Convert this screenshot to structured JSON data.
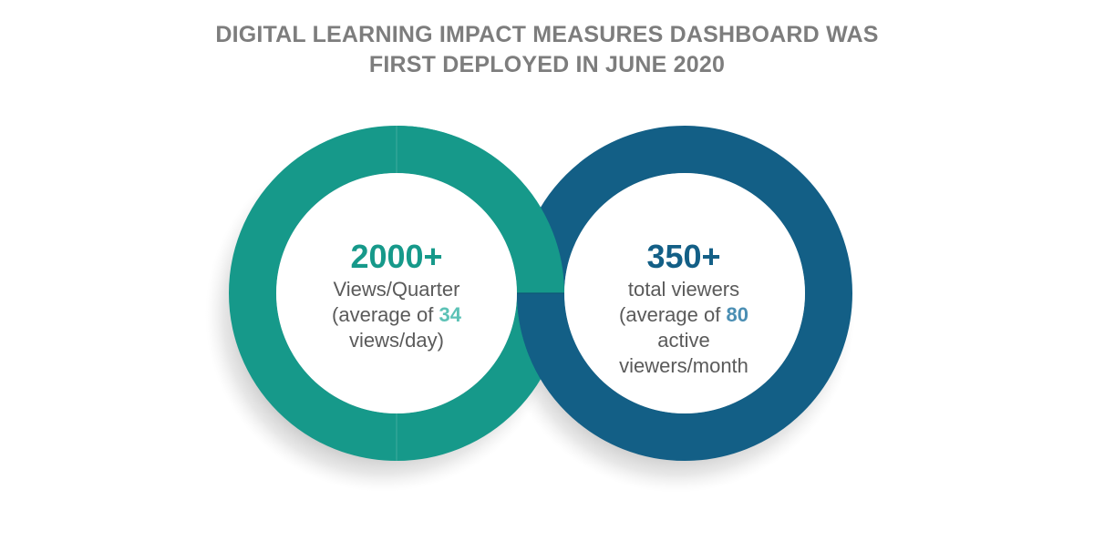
{
  "title": {
    "line1": "DIGITAL LEARNING IMPACT MEASURES DASHBOARD WAS",
    "line2": "FIRST DEPLOYED IN JUNE 2020"
  },
  "colors": {
    "title": "#7d7d7d",
    "teal": "#16998a",
    "teal_light": "#5cc2b6",
    "navy": "#135f86",
    "navy_light": "#4a8eb3",
    "body_text": "#5a5a5a"
  },
  "left_ring": {
    "headline": "2000+",
    "line1": "Views/Quarter",
    "line2_prefix": "(average of ",
    "line2_number": "34",
    "line3": "views/day)"
  },
  "right_ring": {
    "headline": "350+",
    "line1": "total viewers",
    "line2_prefix": "(average of ",
    "line2_number": "80",
    "line3": "active",
    "line4": "viewers/month"
  }
}
